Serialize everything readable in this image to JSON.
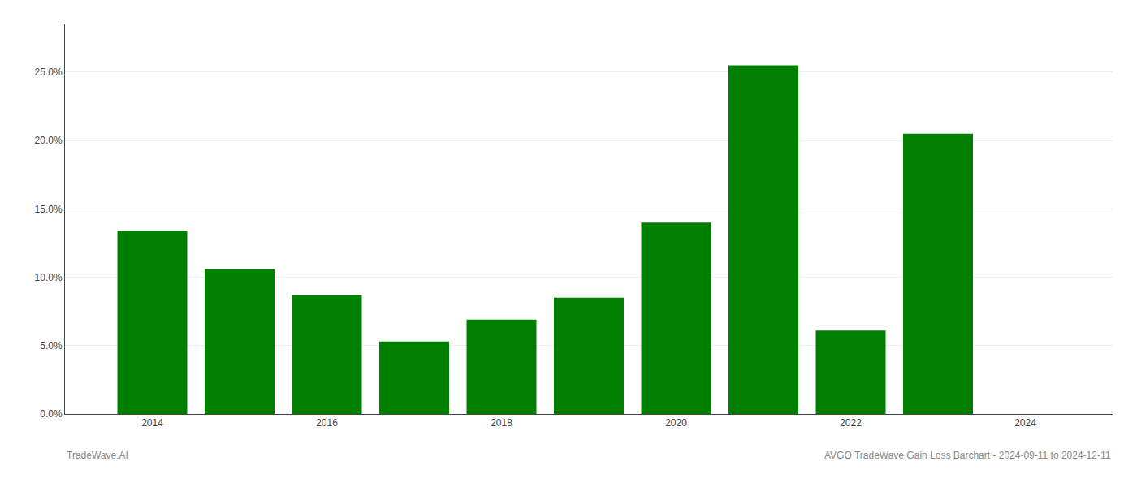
{
  "chart_data": {
    "type": "bar",
    "x": [
      2014,
      2015,
      2016,
      2017,
      2018,
      2019,
      2020,
      2021,
      2022,
      2023
    ],
    "values": [
      0.134,
      0.106,
      0.087,
      0.053,
      0.069,
      0.085,
      0.14,
      0.255,
      0.061,
      0.205
    ],
    "color": "#008000",
    "xlim": [
      2013.0,
      2025.0
    ],
    "xticks": [
      2014,
      2016,
      2018,
      2020,
      2022,
      2024
    ],
    "ylim": [
      0,
      0.285
    ],
    "yticks": [
      {
        "value": 0.0,
        "label": "0.0%"
      },
      {
        "value": 0.05,
        "label": "5.0%"
      },
      {
        "value": 0.1,
        "label": "10.0%"
      },
      {
        "value": 0.15,
        "label": "15.0%"
      },
      {
        "value": 0.2,
        "label": "20.0%"
      },
      {
        "value": 0.25,
        "label": "25.0%"
      }
    ],
    "grid": true,
    "annotations": [
      "TradeWave.AI",
      "AVGO TradeWave Gain Loss Barchart - 2024-09-11 to 2024-12-11"
    ]
  }
}
